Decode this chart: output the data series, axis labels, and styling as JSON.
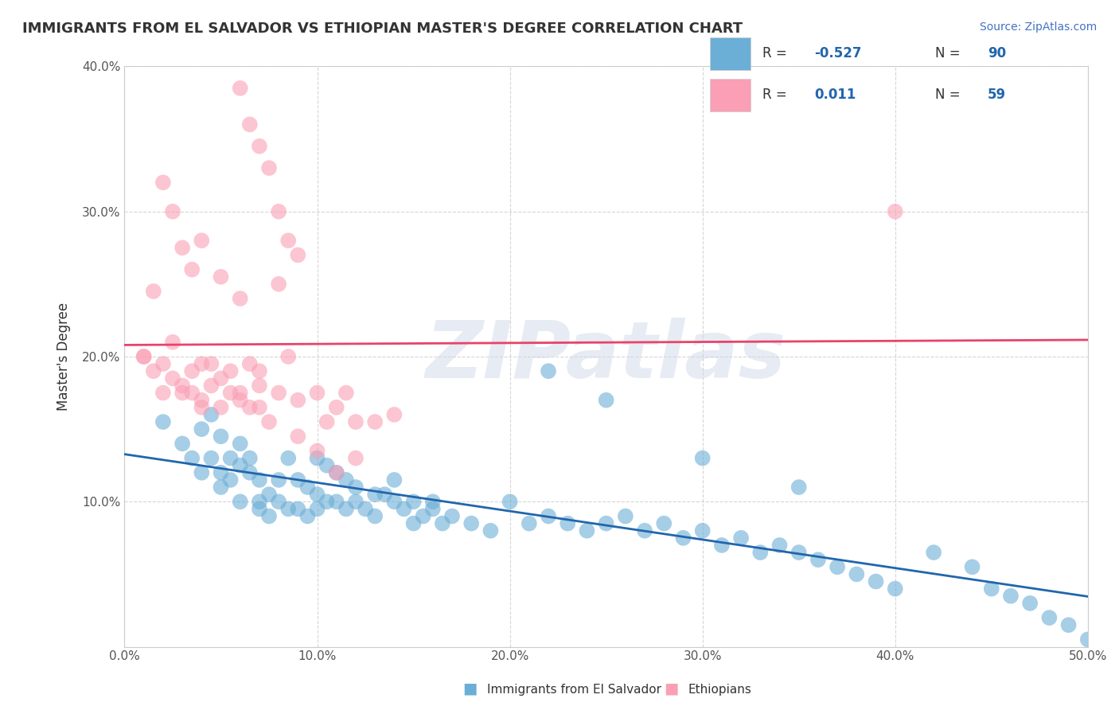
{
  "title": "IMMIGRANTS FROM EL SALVADOR VS ETHIOPIAN MASTER'S DEGREE CORRELATION CHART",
  "source": "Source: ZipAtlas.com",
  "xlabel": "",
  "ylabel": "Master's Degree",
  "watermark": "ZIPatlas",
  "xlim": [
    0.0,
    0.5
  ],
  "ylim": [
    0.0,
    0.4
  ],
  "xticks": [
    0.0,
    0.1,
    0.2,
    0.3,
    0.4,
    0.5
  ],
  "yticks": [
    0.0,
    0.1,
    0.2,
    0.3,
    0.4
  ],
  "xtick_labels": [
    "0.0%",
    "10.0%",
    "20.0%",
    "30.0%",
    "40.0%",
    "50.0%"
  ],
  "ytick_labels": [
    "",
    "10.0%",
    "20.0%",
    "30.0%",
    "40.0%"
  ],
  "blue_color": "#6baed6",
  "pink_color": "#fa9fb5",
  "blue_line_color": "#2166ac",
  "pink_line_color": "#e8436a",
  "legend_blue_label": "Immigrants from El Salvador",
  "legend_pink_label": "Ethiopians",
  "R_blue": -0.527,
  "N_blue": 90,
  "R_pink": 0.011,
  "N_pink": 59,
  "blue_scatter_x": [
    0.02,
    0.03,
    0.035,
    0.04,
    0.04,
    0.045,
    0.045,
    0.05,
    0.05,
    0.05,
    0.055,
    0.055,
    0.06,
    0.06,
    0.06,
    0.065,
    0.065,
    0.07,
    0.07,
    0.07,
    0.075,
    0.075,
    0.08,
    0.08,
    0.085,
    0.085,
    0.09,
    0.09,
    0.095,
    0.095,
    0.1,
    0.1,
    0.1,
    0.105,
    0.105,
    0.11,
    0.11,
    0.115,
    0.115,
    0.12,
    0.12,
    0.125,
    0.13,
    0.13,
    0.135,
    0.14,
    0.14,
    0.145,
    0.15,
    0.15,
    0.155,
    0.16,
    0.16,
    0.165,
    0.17,
    0.18,
    0.19,
    0.2,
    0.21,
    0.22,
    0.23,
    0.24,
    0.25,
    0.26,
    0.27,
    0.28,
    0.29,
    0.3,
    0.31,
    0.32,
    0.33,
    0.34,
    0.35,
    0.36,
    0.37,
    0.38,
    0.39,
    0.4,
    0.42,
    0.44,
    0.45,
    0.46,
    0.47,
    0.48,
    0.49,
    0.5,
    0.22,
    0.25,
    0.3,
    0.35
  ],
  "blue_scatter_y": [
    0.155,
    0.14,
    0.13,
    0.12,
    0.15,
    0.13,
    0.16,
    0.12,
    0.145,
    0.11,
    0.13,
    0.115,
    0.125,
    0.14,
    0.1,
    0.12,
    0.13,
    0.115,
    0.1,
    0.095,
    0.105,
    0.09,
    0.1,
    0.115,
    0.095,
    0.13,
    0.095,
    0.115,
    0.09,
    0.11,
    0.105,
    0.13,
    0.095,
    0.1,
    0.125,
    0.1,
    0.12,
    0.115,
    0.095,
    0.11,
    0.1,
    0.095,
    0.105,
    0.09,
    0.105,
    0.1,
    0.115,
    0.095,
    0.1,
    0.085,
    0.09,
    0.095,
    0.1,
    0.085,
    0.09,
    0.085,
    0.08,
    0.1,
    0.085,
    0.09,
    0.085,
    0.08,
    0.085,
    0.09,
    0.08,
    0.085,
    0.075,
    0.08,
    0.07,
    0.075,
    0.065,
    0.07,
    0.065,
    0.06,
    0.055,
    0.05,
    0.045,
    0.04,
    0.065,
    0.055,
    0.04,
    0.035,
    0.03,
    0.02,
    0.015,
    0.005,
    0.19,
    0.17,
    0.13,
    0.11
  ],
  "pink_scatter_x": [
    0.01,
    0.015,
    0.02,
    0.02,
    0.025,
    0.025,
    0.03,
    0.03,
    0.035,
    0.035,
    0.04,
    0.04,
    0.04,
    0.045,
    0.045,
    0.05,
    0.05,
    0.055,
    0.055,
    0.06,
    0.06,
    0.065,
    0.065,
    0.07,
    0.07,
    0.075,
    0.08,
    0.085,
    0.09,
    0.1,
    0.105,
    0.11,
    0.115,
    0.12,
    0.13,
    0.14,
    0.015,
    0.02,
    0.025,
    0.03,
    0.035,
    0.04,
    0.05,
    0.06,
    0.07,
    0.08,
    0.09,
    0.1,
    0.11,
    0.12,
    0.06,
    0.065,
    0.07,
    0.075,
    0.08,
    0.085,
    0.09,
    0.4,
    0.01
  ],
  "pink_scatter_y": [
    0.2,
    0.19,
    0.195,
    0.175,
    0.185,
    0.21,
    0.18,
    0.175,
    0.175,
    0.19,
    0.17,
    0.195,
    0.165,
    0.195,
    0.18,
    0.185,
    0.165,
    0.19,
    0.175,
    0.17,
    0.175,
    0.195,
    0.165,
    0.18,
    0.19,
    0.155,
    0.175,
    0.2,
    0.17,
    0.175,
    0.155,
    0.165,
    0.175,
    0.155,
    0.155,
    0.16,
    0.245,
    0.32,
    0.3,
    0.275,
    0.26,
    0.28,
    0.255,
    0.24,
    0.165,
    0.25,
    0.145,
    0.135,
    0.12,
    0.13,
    0.385,
    0.36,
    0.345,
    0.33,
    0.3,
    0.28,
    0.27,
    0.3,
    0.2
  ],
  "grid_color": "#cccccc",
  "bg_color": "#ffffff",
  "title_color": "#333333",
  "axis_color": "#555555",
  "watermark_color": "#d0d8e8",
  "watermark_fontsize": 72
}
